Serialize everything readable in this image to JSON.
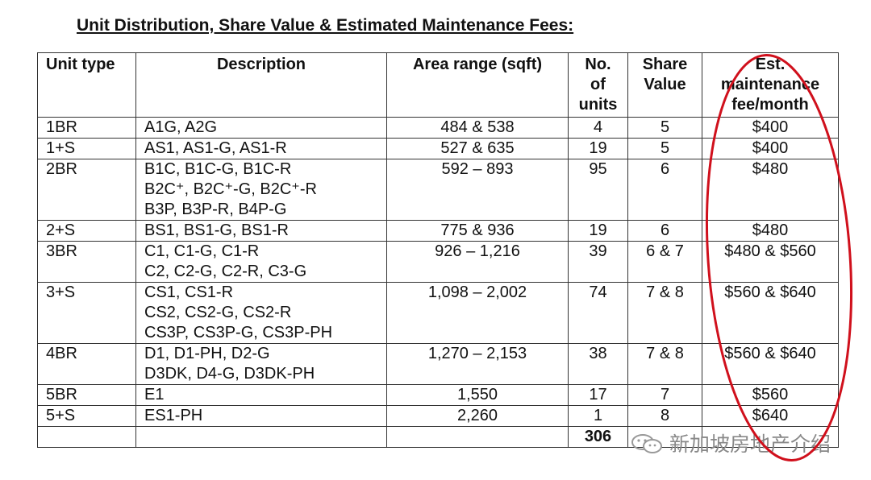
{
  "title": "Unit Distribution, Share Value & Estimated Maintenance Fees:",
  "headers": {
    "unit_type": "Unit type",
    "description": "Description",
    "area": "Area range (sqft)",
    "units": [
      "No.",
      "of",
      "units"
    ],
    "share": [
      "Share",
      "Value"
    ],
    "fee": [
      "Est.",
      "maintenance",
      "fee/month"
    ]
  },
  "rows": [
    {
      "type": "1BR",
      "desc": [
        "A1G, A2G"
      ],
      "area": "484 & 538",
      "units": "4",
      "share": "5",
      "fee": "$400"
    },
    {
      "type": "1+S",
      "desc": [
        "AS1, AS1-G, AS1-R"
      ],
      "area": "527 & 635",
      "units": "19",
      "share": "5",
      "fee": "$400"
    },
    {
      "type": "2BR",
      "desc": [
        "B1C, B1C-G, B1C-R",
        "B2C⁺, B2C⁺-G, B2C⁺-R",
        "B3P, B3P-R, B4P-G"
      ],
      "area": "592 – 893",
      "units": "95",
      "share": "6",
      "fee": "$480"
    },
    {
      "type": "2+S",
      "desc": [
        "BS1, BS1-G, BS1-R"
      ],
      "area": "775 & 936",
      "units": "19",
      "share": "6",
      "fee": "$480"
    },
    {
      "type": "3BR",
      "desc": [
        "C1, C1-G, C1-R",
        "C2, C2-G, C2-R, C3-G"
      ],
      "area": "926 – 1,216",
      "units": "39",
      "share": "6 & 7",
      "fee": "$480 & $560"
    },
    {
      "type": "3+S",
      "desc": [
        "CS1, CS1-R",
        "CS2, CS2-G, CS2-R",
        "CS3P, CS3P-G, CS3P-PH"
      ],
      "area": "1,098 – 2,002",
      "units": "74",
      "share": "7 & 8",
      "fee": "$560 & $640"
    },
    {
      "type": "4BR",
      "desc": [
        "D1, D1-PH, D2-G",
        "D3DK, D4-G, D3DK-PH"
      ],
      "area": "1,270 – 2,153",
      "units": "38",
      "share": "7 & 8",
      "fee": "$560 & $640"
    },
    {
      "type": "5BR",
      "desc": [
        "E1"
      ],
      "area": "1,550",
      "units": "17",
      "share": "7",
      "fee": "$560"
    },
    {
      "type": "5+S",
      "desc": [
        "ES1-PH"
      ],
      "area": "2,260",
      "units": "1",
      "share": "8",
      "fee": "$640"
    }
  ],
  "total_units": "306",
  "watermark": "新加坡房地产介绍",
  "colors": {
    "highlight_circle": "#d0101c",
    "watermark": "#888888"
  }
}
